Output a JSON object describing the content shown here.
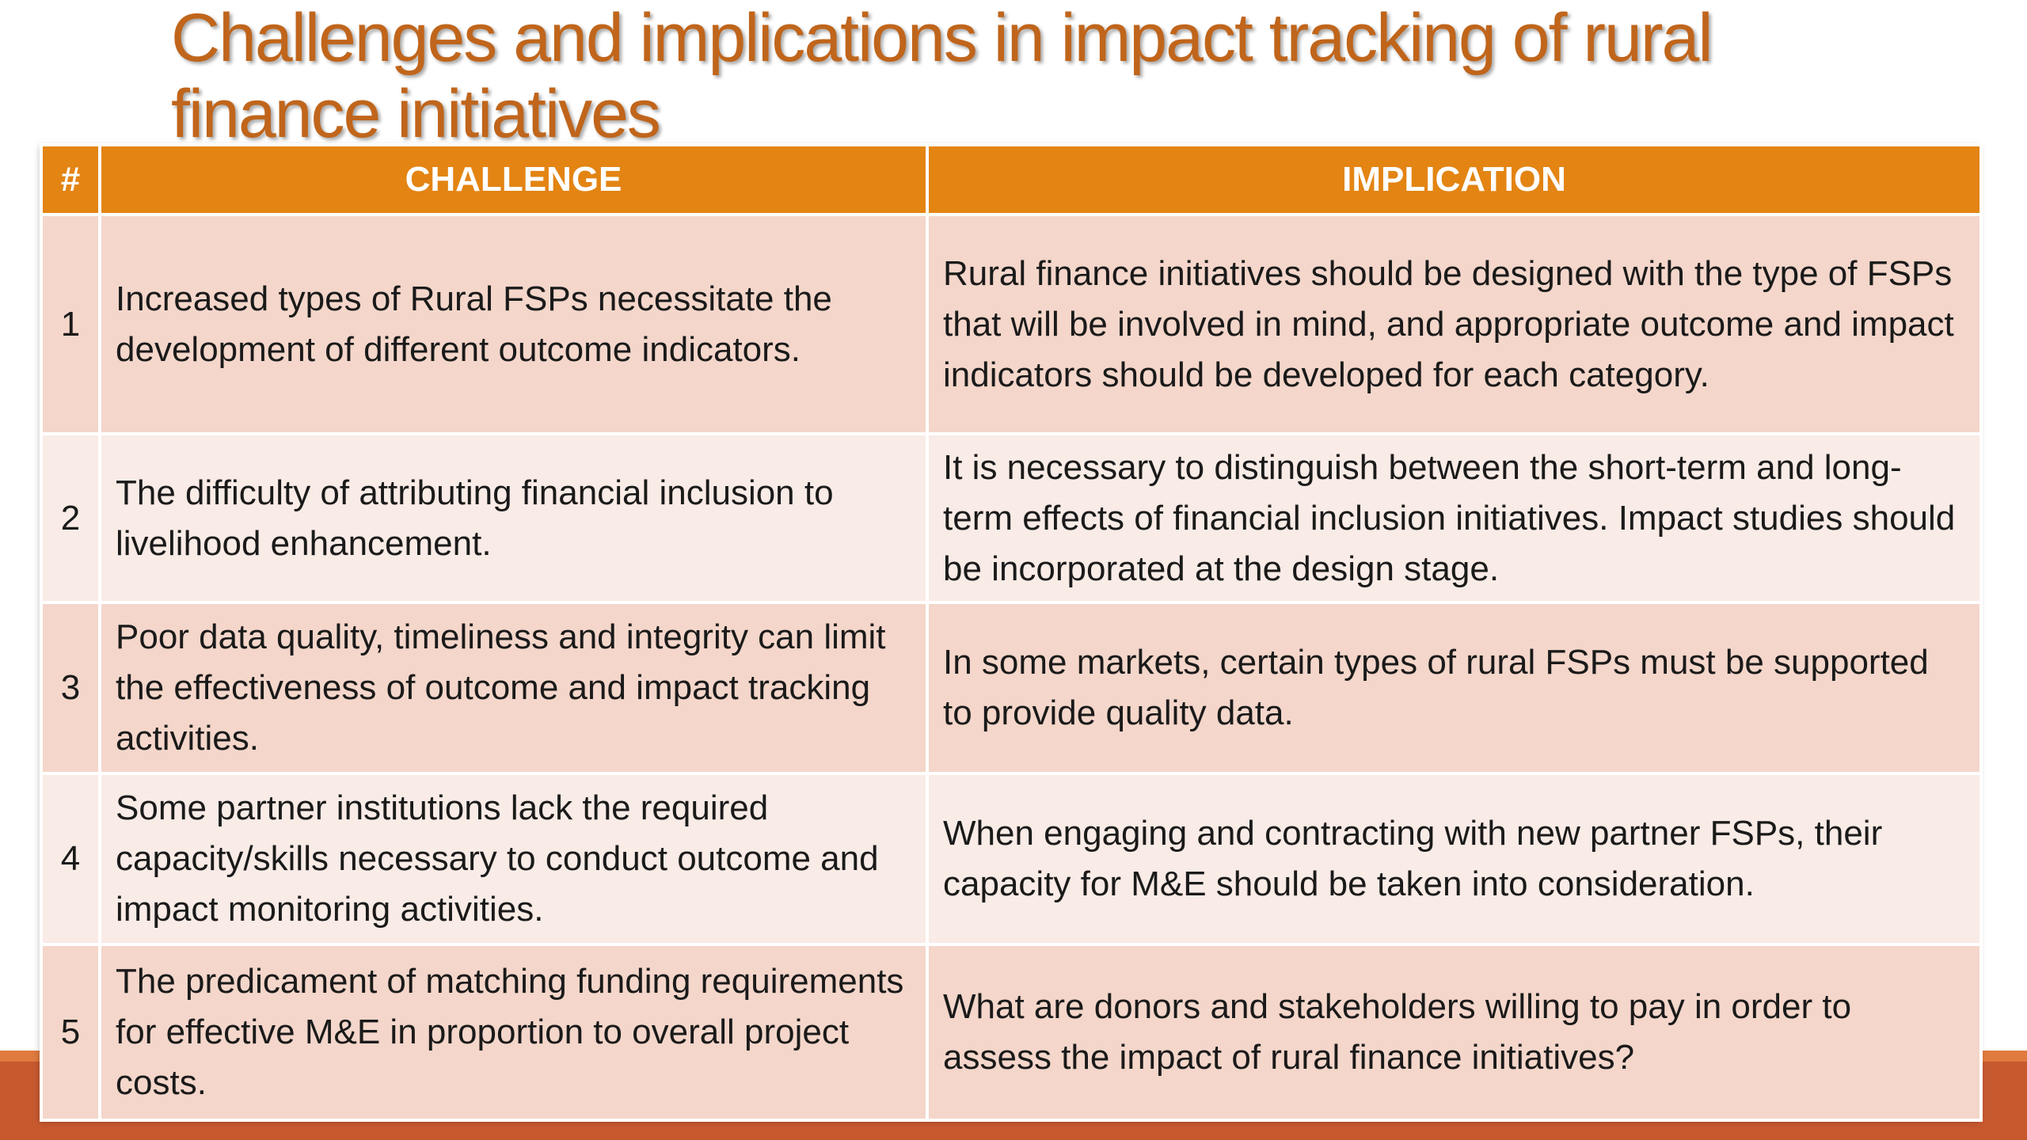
{
  "slide": {
    "title": "Challenges and implications in impact tracking of rural finance initiatives"
  },
  "table": {
    "headers": {
      "number": "#",
      "challenge": "CHALLENGE",
      "implication": "IMPLICATION"
    },
    "rows": [
      {
        "number": "1",
        "challenge": "Increased types of Rural FSPs necessitate the development of different outcome indicators.",
        "implication": "Rural finance initiatives should be designed with the type of FSPs that will be involved in mind, and appropriate outcome and impact indicators should be developed for each category."
      },
      {
        "number": "2",
        "challenge": "The difficulty of attributing financial inclusion to livelihood enhancement.",
        "implication": "It is necessary to distinguish between the short-term and long-term effects of financial inclusion initiatives. Impact studies should be incorporated at the design stage."
      },
      {
        "number": "3",
        "challenge": "Poor data quality, timeliness and integrity can limit the effectiveness of outcome and impact tracking activities.",
        "implication": "In some markets, certain types of rural FSPs must be supported to provide quality data."
      },
      {
        "number": "4",
        "challenge": "Some partner institutions lack the required capacity/skills necessary to conduct outcome and impact monitoring activities.",
        "implication": "When engaging and contracting with new partner FSPs, their capacity for M&E should be taken into consideration."
      },
      {
        "number": "5",
        "challenge": "The predicament of matching funding requirements for effective M&E in proportion to overall project costs.",
        "implication": "What are donors and stakeholders willing to pay in order to assess the impact of rural finance initiatives?"
      }
    ]
  },
  "colors": {
    "title": "#c0651b",
    "header_fill": "#e38413",
    "row_odd": "#f4d6ca",
    "row_even": "#f9ebe6",
    "bottom_band": "#c7592f",
    "bottom_band_top": "#e07a3f"
  }
}
